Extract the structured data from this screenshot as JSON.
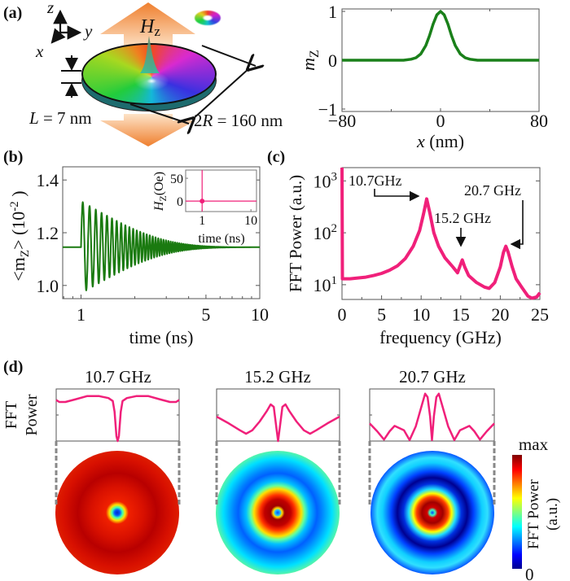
{
  "panel_labels": {
    "a": "(a)",
    "b": "(b)",
    "c": "(c)",
    "d": "(d)"
  },
  "illustration": {
    "axes": {
      "z": "z",
      "y": "y",
      "x": "x"
    },
    "field": {
      "main": "H",
      "sub": "z"
    },
    "thickness_label": {
      "var": "L",
      "rest": " = 7 nm"
    },
    "diameter_label": {
      "pre": "2",
      "var": "R",
      "rest": " = 160 nm"
    },
    "colors": {
      "field_arrow": "#f08a3a",
      "disc_side": "#1d6b6e"
    }
  },
  "chart_data": [
    {
      "id": "a",
      "type": "line",
      "xlabel": {
        "var": "x",
        "rest": " (nm)"
      },
      "ylabel": {
        "main": "m",
        "sub": "Z"
      },
      "xlim": [
        -80,
        80
      ],
      "ylim": [
        -1.05,
        1.05
      ],
      "xticks": [
        -80,
        0,
        80
      ],
      "xtick_labels": [
        "−80",
        "0",
        "80"
      ],
      "yticks": [
        -1,
        0,
        1
      ],
      "ytick_labels": [
        "−1",
        "0",
        "1"
      ],
      "color": "#1a801a",
      "points": [
        [
          -80,
          0
        ],
        [
          -30,
          0
        ],
        [
          -24,
          0.02
        ],
        [
          -20,
          0.05
        ],
        [
          -16,
          0.13
        ],
        [
          -12,
          0.3
        ],
        [
          -9,
          0.5
        ],
        [
          -6,
          0.74
        ],
        [
          -3,
          0.93
        ],
        [
          0,
          1
        ],
        [
          3,
          0.93
        ],
        [
          6,
          0.74
        ],
        [
          9,
          0.5
        ],
        [
          12,
          0.3
        ],
        [
          16,
          0.13
        ],
        [
          20,
          0.05
        ],
        [
          24,
          0.02
        ],
        [
          30,
          0
        ],
        [
          80,
          0
        ]
      ]
    },
    {
      "id": "b",
      "type": "line",
      "xscale": "log",
      "xlabel": "time (ns)",
      "ylabel": {
        "pre": "<m",
        "sub": "Z",
        "post": "> (10",
        "sup": "-2",
        "end": " )"
      },
      "xlim": [
        0.79,
        10
      ],
      "ylim": [
        0.95,
        1.45
      ],
      "xticks": [
        1,
        5,
        10
      ],
      "xtick_labels": [
        "1",
        "5",
        "10"
      ],
      "yticks": [
        1.0,
        1.2,
        1.4
      ],
      "ytick_labels": [
        "1.0",
        "1.2",
        "1.4"
      ],
      "color": "#1a7a10",
      "baseline": 1.145,
      "pulse_time_ns": 1,
      "first_max": 1.32,
      "first_min": 0.98,
      "oscillation_freq_GHz": 10.7,
      "inset": {
        "type": "line",
        "xscale": "log",
        "xlabel": "time (ns)",
        "ylabel": {
          "main": "H",
          "sub": "Z",
          "rest": "(Oe)"
        },
        "xlim": [
          0.46,
          13
        ],
        "ylim": [
          -23,
          68
        ],
        "xticks": [
          1,
          10
        ],
        "xtick_labels": [
          "1",
          "10"
        ],
        "yticks": [
          0,
          50
        ],
        "ytick_labels": [
          "0",
          "50"
        ],
        "color": "#f0207a",
        "pulse_time_ns": 1
      }
    },
    {
      "id": "c",
      "type": "line",
      "yscale": "log",
      "xlabel": "frequency (GHz)",
      "ylabel": "FFT Power (a.u.)",
      "xlim": [
        0,
        25
      ],
      "ylim": [
        5.2,
        1800
      ],
      "xticks": [
        0,
        5,
        10,
        15,
        20,
        25
      ],
      "xtick_labels": [
        "0",
        "5",
        "10",
        "15",
        "20",
        "25"
      ],
      "yticks": [
        10,
        100,
        1000
      ],
      "ytick_labels": [
        {
          "base": "10",
          "exp": "1"
        },
        {
          "base": "10",
          "exp": "2"
        },
        {
          "base": "10",
          "exp": "3"
        }
      ],
      "color": "#f0207a",
      "annotations": [
        "10.7GHz",
        "15.2 GHz",
        "20.7 GHz"
      ],
      "points": [
        [
          0,
          1800
        ],
        [
          0.05,
          13
        ],
        [
          1,
          13
        ],
        [
          2,
          13.5
        ],
        [
          3,
          14
        ],
        [
          4,
          15
        ],
        [
          5,
          16.5
        ],
        [
          6,
          19
        ],
        [
          7,
          23
        ],
        [
          8,
          32
        ],
        [
          9,
          55
        ],
        [
          9.8,
          110
        ],
        [
          10.3,
          230
        ],
        [
          10.7,
          450
        ],
        [
          11.1,
          240
        ],
        [
          11.6,
          100
        ],
        [
          12.2,
          55
        ],
        [
          13,
          33
        ],
        [
          14,
          22
        ],
        [
          14.6,
          17
        ],
        [
          15.0,
          25
        ],
        [
          15.2,
          30
        ],
        [
          15.5,
          22
        ],
        [
          16,
          15
        ],
        [
          17,
          11
        ],
        [
          18,
          9
        ],
        [
          18.6,
          8.5
        ],
        [
          19.3,
          11
        ],
        [
          20,
          22
        ],
        [
          20.4,
          42
        ],
        [
          20.7,
          55
        ],
        [
          21.0,
          42
        ],
        [
          21.5,
          22
        ],
        [
          22,
          13
        ],
        [
          22.7,
          9
        ],
        [
          23.5,
          6
        ],
        [
          24,
          5.5
        ],
        [
          24.6,
          5.8
        ],
        [
          25,
          7
        ]
      ]
    },
    {
      "id": "d",
      "type": "line",
      "ylabel": [
        "FFT",
        "Power"
      ],
      "color": "#f0207a",
      "modes": [
        {
          "title": "10.7 GHz",
          "half_profile": [
            [
              0,
              0
            ],
            [
              0.02,
              0.1
            ],
            [
              0.05,
              0.6
            ],
            [
              0.08,
              0.82
            ],
            [
              0.15,
              0.88
            ],
            [
              0.3,
              0.92
            ],
            [
              0.5,
              0.92
            ],
            [
              0.7,
              0.85
            ],
            [
              0.85,
              0.8
            ],
            [
              0.95,
              0.8
            ],
            [
              1,
              0.84
            ]
          ]
        },
        {
          "title": "15.2 GHz",
          "half_profile": [
            [
              0,
              0
            ],
            [
              0.03,
              0.3
            ],
            [
              0.07,
              0.7
            ],
            [
              0.12,
              0.75
            ],
            [
              0.18,
              0.62
            ],
            [
              0.3,
              0.4
            ],
            [
              0.42,
              0.22
            ],
            [
              0.52,
              0.15
            ],
            [
              0.62,
              0.22
            ],
            [
              0.8,
              0.36
            ],
            [
              1,
              0.5
            ]
          ]
        },
        {
          "title": "20.7 GHz",
          "half_profile": [
            [
              0,
              0.02
            ],
            [
              0.03,
              0.5
            ],
            [
              0.07,
              0.9
            ],
            [
              0.11,
              0.97
            ],
            [
              0.16,
              0.75
            ],
            [
              0.26,
              0.3
            ],
            [
              0.36,
              0.02
            ],
            [
              0.45,
              0.22
            ],
            [
              0.6,
              0.31
            ],
            [
              0.68,
              0.2
            ],
            [
              0.77,
              0.03
            ],
            [
              0.88,
              0.2
            ],
            [
              1,
              0.36
            ]
          ]
        }
      ],
      "colorbar": {
        "max_label": "max",
        "min_label": "0",
        "label": [
          "FFT Power",
          "(a.u.)"
        ],
        "colormap": "jet"
      }
    }
  ]
}
